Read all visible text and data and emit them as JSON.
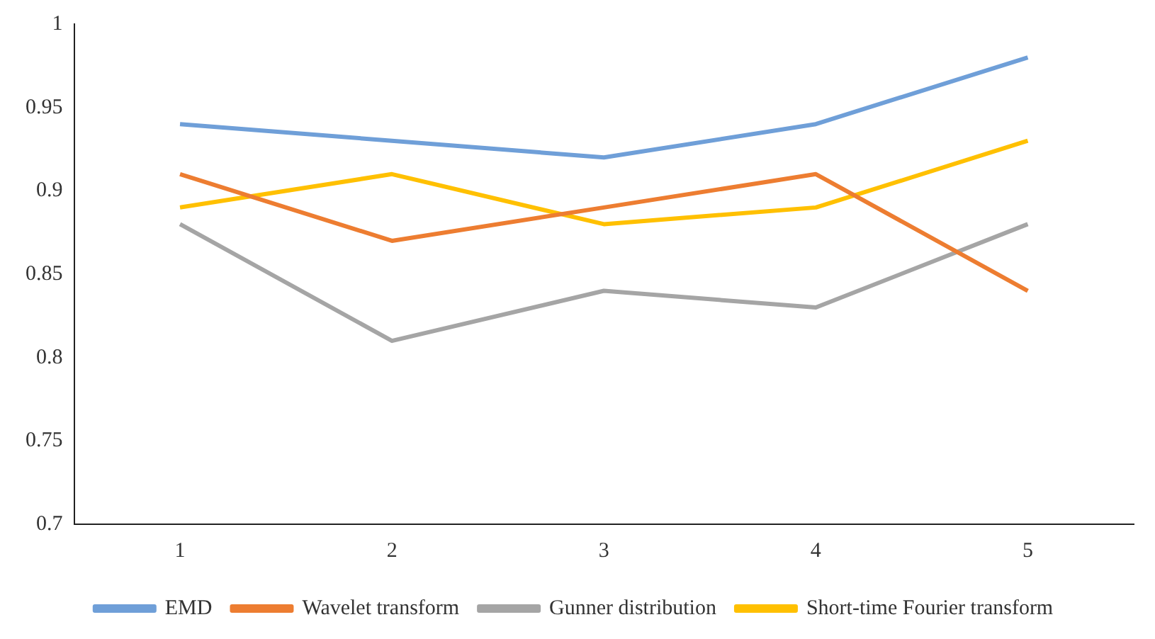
{
  "chart_data": {
    "type": "line",
    "categories": [
      "1",
      "2",
      "3",
      "4",
      "5"
    ],
    "series": [
      {
        "name": "EMD",
        "color": "#6f9fd8",
        "values": [
          0.94,
          0.93,
          0.92,
          0.94,
          0.98
        ]
      },
      {
        "name": "Wavelet transform",
        "color": "#ed7d31",
        "values": [
          0.91,
          0.87,
          0.89,
          0.91,
          0.84
        ]
      },
      {
        "name": "Gunner distribution",
        "color": "#a5a5a5",
        "values": [
          0.88,
          0.81,
          0.84,
          0.83,
          0.88
        ]
      },
      {
        "name": "Short-time Fourier transform",
        "color": "#ffc000",
        "values": [
          0.89,
          0.91,
          0.88,
          0.89,
          0.93
        ]
      }
    ],
    "ylim": [
      0.7,
      1
    ],
    "yticks": [
      0.7,
      0.75,
      0.8,
      0.85,
      0.9,
      0.95,
      1
    ],
    "grid": false,
    "legend": "bottom",
    "marker": "none",
    "line_style": "solid"
  }
}
